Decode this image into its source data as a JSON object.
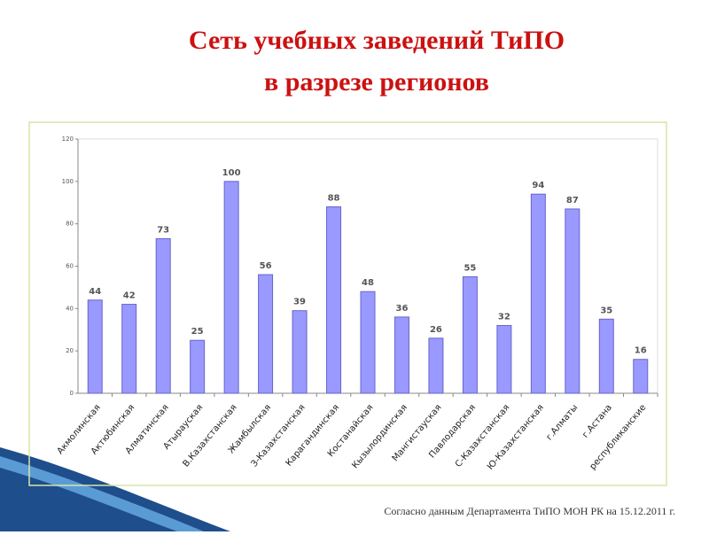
{
  "chart_data": {
    "type": "bar",
    "title": [
      "Сеть учебных заведений ТиПО",
      "в разрезе регионов"
    ],
    "categories": [
      "Акмолинская",
      "Актюбинская",
      "Алматинская",
      "Атырауская",
      "В.Казахстанская",
      "Жамбылская",
      "З-Казахстанская",
      "Карагандинская",
      "Костанайская",
      "Кызылординская",
      "Мангистауская",
      "Павлодарская",
      "С-Казахстанская",
      "Ю-Казахстанская",
      "г.Алматы",
      "г.Астана",
      "республиканские"
    ],
    "values": [
      44,
      42,
      73,
      25,
      100,
      56,
      39,
      88,
      48,
      36,
      26,
      55,
      32,
      94,
      87,
      35,
      16
    ],
    "color": "#9999ff",
    "ylim": [
      0,
      120
    ],
    "yticks": [
      0,
      20,
      40,
      60,
      80,
      100,
      120
    ],
    "source": "Согласно данным Департамента ТиПО МОН РК на 15.12.2011 г."
  }
}
